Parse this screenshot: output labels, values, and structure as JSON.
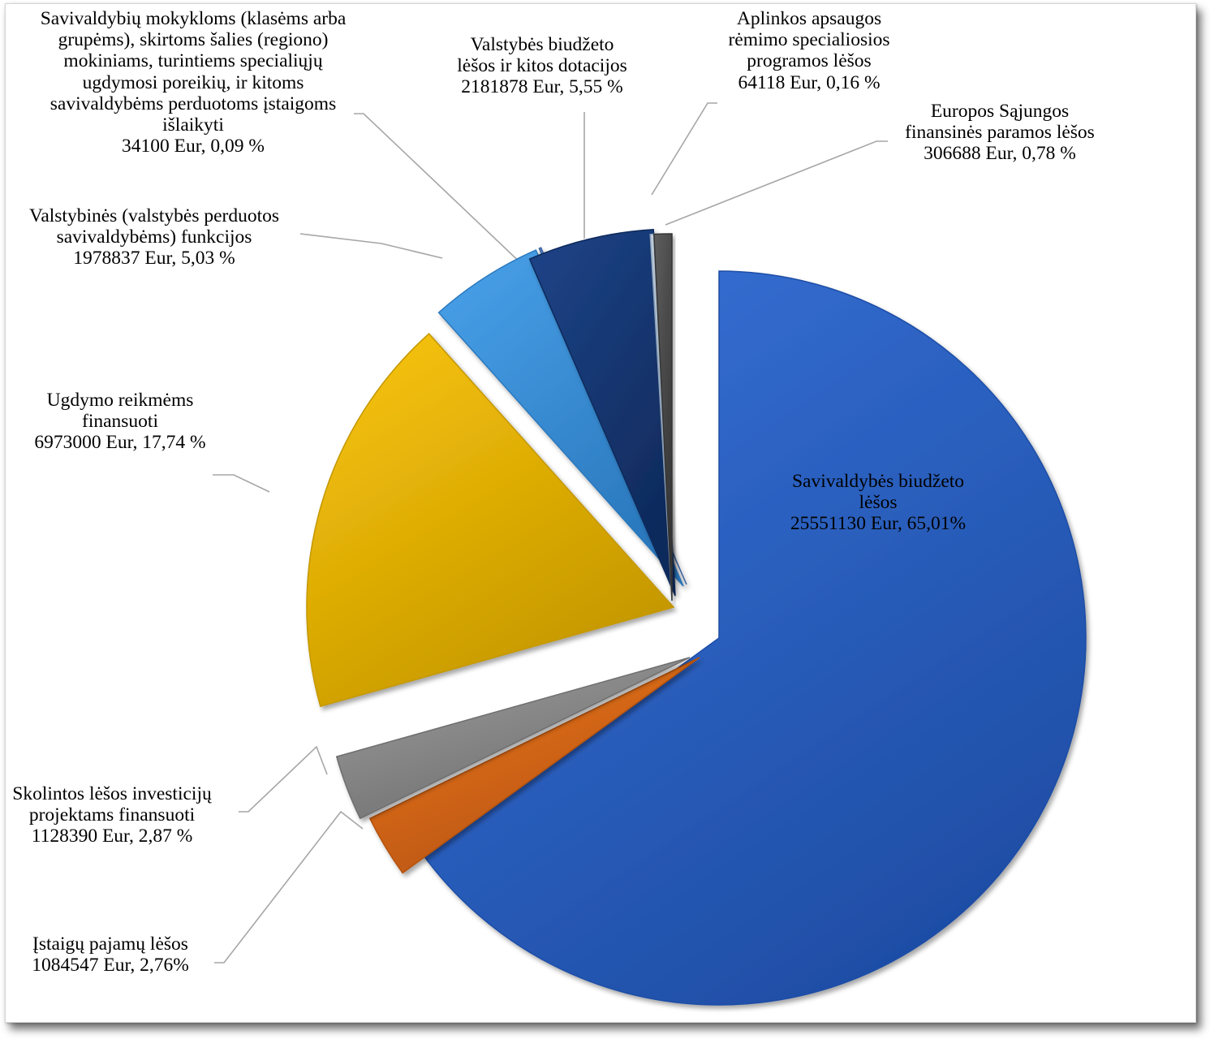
{
  "chart_data": {
    "type": "pie",
    "title": "",
    "value_unit": "Eur",
    "legend": "none (data labels with leader lines)",
    "exploded": true,
    "slices": [
      {
        "label_lines": [
          "Savivaldybės biudžeto",
          "lėšos",
          "25551130 Eur, 65,01%"
        ],
        "value": 25551130,
        "percent": 65.01,
        "color": "#3772d8"
      },
      {
        "label_lines": [
          "Įstaigų pajamų lėšos",
          "1084547 Eur, 2,76%"
        ],
        "value": 1084547,
        "percent": 2.76,
        "color": "#f07a22"
      },
      {
        "label_lines": [
          "Skolintos lėšos investicijų",
          "projektams finansuoti",
          "1128390 Eur, 2,87 %"
        ],
        "value": 1128390,
        "percent": 2.87,
        "color": "#a0a0a0"
      },
      {
        "label_lines": [
          "Ugdymo reikmėms",
          "finansuoti",
          "6973000 Eur, 17,74 %"
        ],
        "value": 6973000,
        "percent": 17.74,
        "color": "#fbc60c"
      },
      {
        "label_lines": [
          "Valstybinės (valstybės perduotos",
          "savivaldybėms) funkcijos",
          "1978837 Eur, 5,03 %"
        ],
        "value": 1978837,
        "percent": 5.03,
        "color": "#4aa2ea"
      },
      {
        "label_lines": [
          "Savivaldybių mokykloms (klasėms arba",
          "grupėms), skirtoms šalies (regiono)",
          "mokiniams, turintiems specialiųjų",
          "ugdymosi poreikių, ir kitoms",
          "savivaldybėms perduotoms įstaigoms",
          "išlaikyti",
          "34100 Eur, 0,09 %"
        ],
        "value": 34100,
        "percent": 0.09,
        "color": "#5c88c8"
      },
      {
        "label_lines": [
          "Valstybės biudžeto",
          "lėšos ir kitos dotacijos",
          "2181878 Eur, 5,55 %"
        ],
        "value": 2181878,
        "percent": 5.55,
        "color": "#1e4488"
      },
      {
        "label_lines": [
          "Aplinkos apsaugos",
          "rėmimo specialiosios",
          "programos lėšos",
          "64118 Eur, 0,16 %"
        ],
        "value": 64118,
        "percent": 0.16,
        "color": "#c4d2e0"
      },
      {
        "label_lines": [
          "Europos Sąjungos",
          "finansinės paramos lėšos",
          "306688 Eur, 0,78 %"
        ],
        "value": 306688,
        "percent": 0.78,
        "color": "#5e5e5e"
      }
    ]
  }
}
